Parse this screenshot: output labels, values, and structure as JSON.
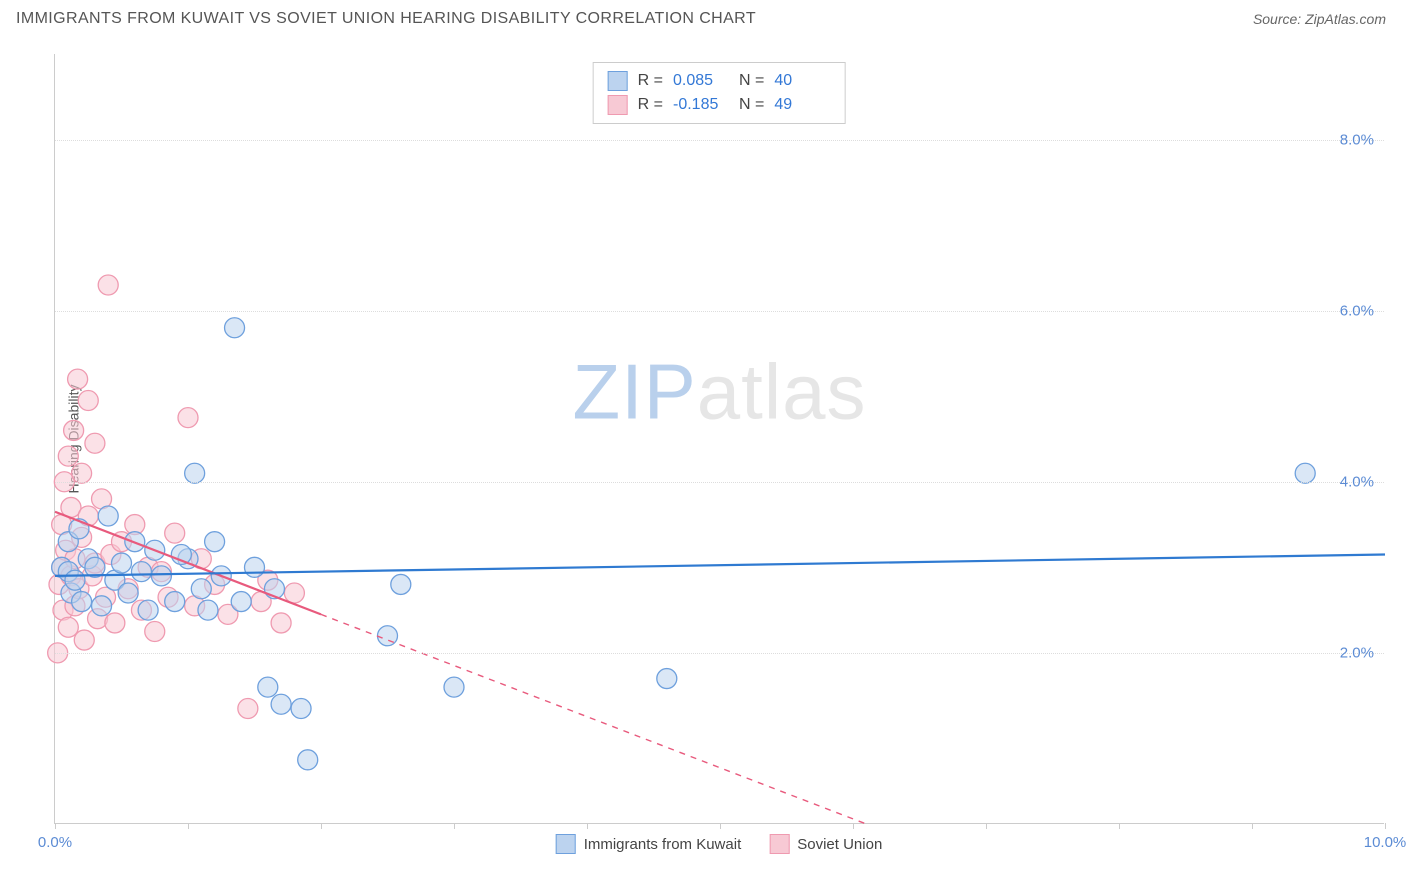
{
  "header": {
    "title": "IMMIGRANTS FROM KUWAIT VS SOVIET UNION HEARING DISABILITY CORRELATION CHART",
    "source_prefix": "Source: ",
    "source_name": "ZipAtlas.com"
  },
  "chart": {
    "type": "scatter",
    "y_axis_title": "Hearing Disability",
    "background_color": "#ffffff",
    "grid_color": "#dddddd",
    "axis_color": "#cccccc",
    "xlim": [
      0,
      10
    ],
    "ylim": [
      0,
      9
    ],
    "x_ticks": [
      0,
      1,
      2,
      3,
      4,
      5,
      6,
      7,
      8,
      9,
      10
    ],
    "x_tick_labels": {
      "0": "0.0%",
      "10": "10.0%"
    },
    "y_ticks": [
      2,
      4,
      6,
      8
    ],
    "y_tick_labels": {
      "2": "2.0%",
      "4": "4.0%",
      "6": "6.0%",
      "8": "8.0%"
    },
    "tick_label_color": "#5b8bd4",
    "tick_label_fontsize": 15,
    "watermark": {
      "zip": "ZIP",
      "atlas": "atlas",
      "zip_color": "#b9d0ec",
      "atlas_color": "#e6e6e6",
      "fontsize": 78
    }
  },
  "stats": {
    "rows": [
      {
        "swatch_fill": "#bcd3ef",
        "swatch_stroke": "#6ea0dd",
        "r_label": "R =",
        "r_value": "0.085",
        "n_label": "N =",
        "n_value": "40"
      },
      {
        "swatch_fill": "#f7c9d4",
        "swatch_stroke": "#ef9ab0",
        "r_label": "R =",
        "r_value": "-0.185",
        "n_label": "N =",
        "n_value": "49"
      }
    ]
  },
  "legend": {
    "items": [
      {
        "swatch_fill": "#bcd3ef",
        "swatch_stroke": "#6ea0dd",
        "label": "Immigrants from Kuwait"
      },
      {
        "swatch_fill": "#f7c9d4",
        "swatch_stroke": "#ef9ab0",
        "label": "Soviet Union"
      }
    ]
  },
  "series": {
    "kuwait": {
      "color_fill": "#bcd3ef",
      "color_stroke": "#6ea0dd",
      "fill_opacity": 0.55,
      "marker_r": 10,
      "line_color": "#2f7ad1",
      "line_width": 2.2,
      "trend": {
        "x1": 0,
        "y1": 2.9,
        "x2": 10,
        "y2": 3.15
      },
      "points": [
        [
          0.05,
          3.0
        ],
        [
          0.1,
          2.95
        ],
        [
          0.1,
          3.3
        ],
        [
          0.12,
          2.7
        ],
        [
          0.15,
          2.85
        ],
        [
          0.18,
          3.45
        ],
        [
          0.2,
          2.6
        ],
        [
          0.25,
          3.1
        ],
        [
          0.3,
          3.0
        ],
        [
          0.35,
          2.55
        ],
        [
          0.4,
          3.6
        ],
        [
          0.45,
          2.85
        ],
        [
          0.5,
          3.05
        ],
        [
          0.55,
          2.7
        ],
        [
          0.6,
          3.3
        ],
        [
          0.7,
          2.5
        ],
        [
          0.75,
          3.2
        ],
        [
          0.8,
          2.9
        ],
        [
          0.9,
          2.6
        ],
        [
          1.0,
          3.1
        ],
        [
          1.05,
          4.1
        ],
        [
          1.1,
          2.75
        ],
        [
          1.15,
          2.5
        ],
        [
          1.2,
          3.3
        ],
        [
          1.25,
          2.9
        ],
        [
          1.35,
          5.8
        ],
        [
          1.4,
          2.6
        ],
        [
          1.5,
          3.0
        ],
        [
          1.6,
          1.6
        ],
        [
          1.65,
          2.75
        ],
        [
          1.7,
          1.4
        ],
        [
          1.85,
          1.35
        ],
        [
          1.9,
          0.75
        ],
        [
          2.5,
          2.2
        ],
        [
          2.6,
          2.8
        ],
        [
          3.0,
          1.6
        ],
        [
          4.6,
          1.7
        ],
        [
          9.4,
          4.1
        ],
        [
          0.95,
          3.15
        ],
        [
          0.65,
          2.95
        ]
      ]
    },
    "soviet": {
      "color_fill": "#f7c9d4",
      "color_stroke": "#ef9ab0",
      "fill_opacity": 0.55,
      "marker_r": 10,
      "line_color": "#e85a7d",
      "line_width": 2.2,
      "trend_solid": {
        "x1": 0,
        "y1": 3.65,
        "x2": 2.0,
        "y2": 2.45
      },
      "trend_dashed": {
        "x1": 2.0,
        "y1": 2.45,
        "x2": 6.1,
        "y2": 0.0
      },
      "points": [
        [
          0.02,
          2.0
        ],
        [
          0.03,
          2.8
        ],
        [
          0.05,
          3.0
        ],
        [
          0.05,
          3.5
        ],
        [
          0.06,
          2.5
        ],
        [
          0.07,
          4.0
        ],
        [
          0.08,
          3.2
        ],
        [
          0.1,
          2.3
        ],
        [
          0.1,
          4.3
        ],
        [
          0.12,
          3.7
        ],
        [
          0.12,
          2.9
        ],
        [
          0.14,
          4.6
        ],
        [
          0.15,
          3.1
        ],
        [
          0.15,
          2.55
        ],
        [
          0.17,
          5.2
        ],
        [
          0.18,
          2.75
        ],
        [
          0.2,
          3.35
        ],
        [
          0.2,
          4.1
        ],
        [
          0.22,
          2.15
        ],
        [
          0.25,
          3.6
        ],
        [
          0.25,
          4.95
        ],
        [
          0.28,
          2.9
        ],
        [
          0.3,
          3.05
        ],
        [
          0.3,
          4.45
        ],
        [
          0.32,
          2.4
        ],
        [
          0.35,
          3.8
        ],
        [
          0.38,
          2.65
        ],
        [
          0.4,
          6.3
        ],
        [
          0.42,
          3.15
        ],
        [
          0.45,
          2.35
        ],
        [
          0.5,
          3.3
        ],
        [
          0.55,
          2.75
        ],
        [
          0.6,
          3.5
        ],
        [
          0.65,
          2.5
        ],
        [
          0.7,
          3.0
        ],
        [
          0.75,
          2.25
        ],
        [
          0.8,
          2.95
        ],
        [
          0.85,
          2.65
        ],
        [
          0.9,
          3.4
        ],
        [
          1.0,
          4.75
        ],
        [
          1.05,
          2.55
        ],
        [
          1.1,
          3.1
        ],
        [
          1.2,
          2.8
        ],
        [
          1.3,
          2.45
        ],
        [
          1.45,
          1.35
        ],
        [
          1.55,
          2.6
        ],
        [
          1.6,
          2.85
        ],
        [
          1.7,
          2.35
        ],
        [
          1.8,
          2.7
        ]
      ]
    }
  }
}
